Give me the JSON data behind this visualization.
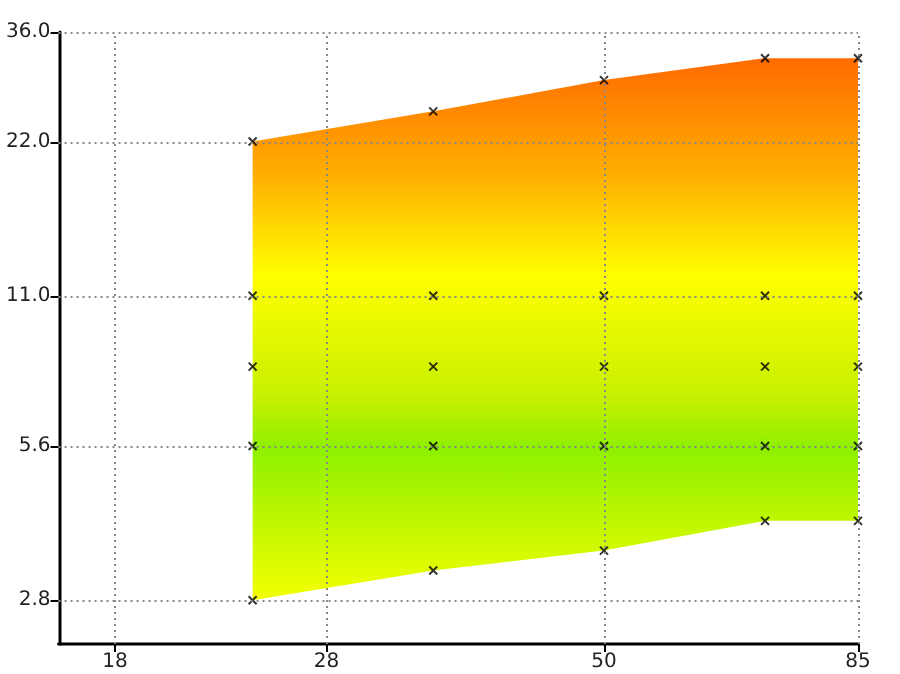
{
  "chart_data": {
    "type": "scatter",
    "series": [
      {
        "type": "area",
        "color": "#c8f000",
        "x": [
          24,
          35,
          50,
          70,
          85
        ],
        "values": [
          null,
          null,
          null,
          null,
          null
        ],
        "upper": [
          22,
          25.2,
          29,
          32,
          32
        ],
        "lower": [
          2.8,
          3.2,
          3.5,
          4.0,
          4.0
        ]
      },
      {
        "type": "scatter",
        "color": "#000000",
        "marker": "cross",
        "x": [
          24,
          24,
          24,
          24,
          24,
          35,
          35,
          35,
          35,
          35,
          50,
          50,
          50,
          50,
          50,
          70,
          70,
          70,
          70,
          70,
          85,
          85,
          85,
          85,
          85
        ],
        "values": [
          22,
          11,
          8,
          5.6,
          2.8,
          25.2,
          11,
          8,
          5.6,
          3.2,
          29,
          11,
          8,
          5.6,
          3.5,
          32,
          11,
          8,
          5.6,
          4.0,
          32,
          11,
          8,
          5.6,
          4.0
        ]
      }
    ],
    "log": "xy",
    "xlim": [
      16,
      85
    ],
    "xticks": [
      18,
      28,
      50,
      85
    ],
    "ylim": [
      2.3,
      36
    ],
    "yticks": [
      2.8,
      5.6,
      {
        "value": 11,
        "label": "11.0"
      },
      {
        "value": 22,
        "label": "22.0"
      },
      {
        "value": 36,
        "label": "36.0"
      }
    ],
    "grid": true
  }
}
